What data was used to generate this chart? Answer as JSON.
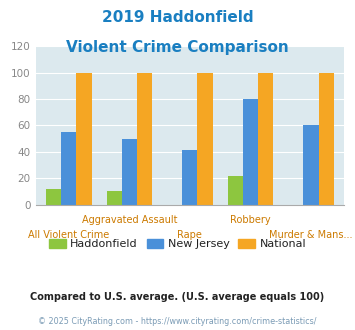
{
  "title_line1": "2019 Haddonfield",
  "title_line2": "Violent Crime Comparison",
  "title_color": "#1a7fc1",
  "categories": [
    "All Violent Crime",
    "Aggravated Assault",
    "Rape",
    "Robbery",
    "Murder & Mans..."
  ],
  "haddonfield": [
    12,
    10,
    0,
    22,
    0
  ],
  "new_jersey": [
    55,
    50,
    41,
    80,
    60
  ],
  "national": [
    100,
    100,
    100,
    100,
    100
  ],
  "colors": {
    "haddonfield": "#8dc63f",
    "new_jersey": "#4a90d9",
    "national": "#f5a623"
  },
  "ylim": [
    0,
    120
  ],
  "yticks": [
    0,
    20,
    40,
    60,
    80,
    100,
    120
  ],
  "bg_color": "#dce9ee",
  "legend_labels": [
    "Haddonfield",
    "New Jersey",
    "National"
  ],
  "footnote1": "Compared to U.S. average. (U.S. average equals 100)",
  "footnote2": "© 2025 CityRating.com - https://www.cityrating.com/crime-statistics/",
  "footnote1_color": "#222222",
  "footnote2_color": "#7a9bb5",
  "xlabel_color": "#cc7a00",
  "ytick_color": "#888888",
  "upper_labels": [
    "",
    "Aggravated Assault",
    "",
    "Robbery",
    ""
  ],
  "lower_labels": [
    "All Violent Crime",
    "",
    "Rape",
    "",
    "Murder & Mans..."
  ]
}
